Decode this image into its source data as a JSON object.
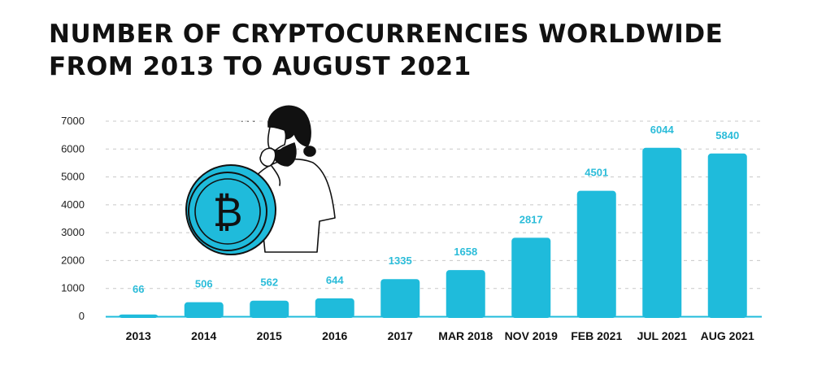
{
  "chart_data": {
    "type": "bar",
    "title": "NUMBER OF CRYPTOCURRENCIES WORLDWIDE FROM 2013 TO AUGUST 2021",
    "categories": [
      "2013",
      "2014",
      "2015",
      "2016",
      "2017",
      "MAR 2018",
      "NOV 2019",
      "FEB 2021",
      "JUL 2021",
      "AUG 2021"
    ],
    "values": [
      66,
      506,
      562,
      644,
      1335,
      1658,
      2817,
      4501,
      6044,
      5840
    ],
    "data_labels": [
      "66",
      "506",
      "562",
      "644",
      "1335",
      "1658",
      "2817",
      "4501",
      "6044",
      "5840"
    ],
    "yticks": [
      0,
      1000,
      2000,
      3000,
      4000,
      5000,
      6000,
      7000
    ],
    "ylim": [
      0,
      7000
    ],
    "grid": "horizontal-dashed",
    "xlabel": "",
    "ylabel": "",
    "colors": {
      "bar": "#1fbbdb",
      "label": "#2bbcd9",
      "grid": "#c8c8c8",
      "baseline": "#1fbbdb"
    }
  },
  "illustration": {
    "icon": "bitcoin-coin-thinking-man",
    "coin_symbol": "₿",
    "thought_dots": ". . ."
  }
}
